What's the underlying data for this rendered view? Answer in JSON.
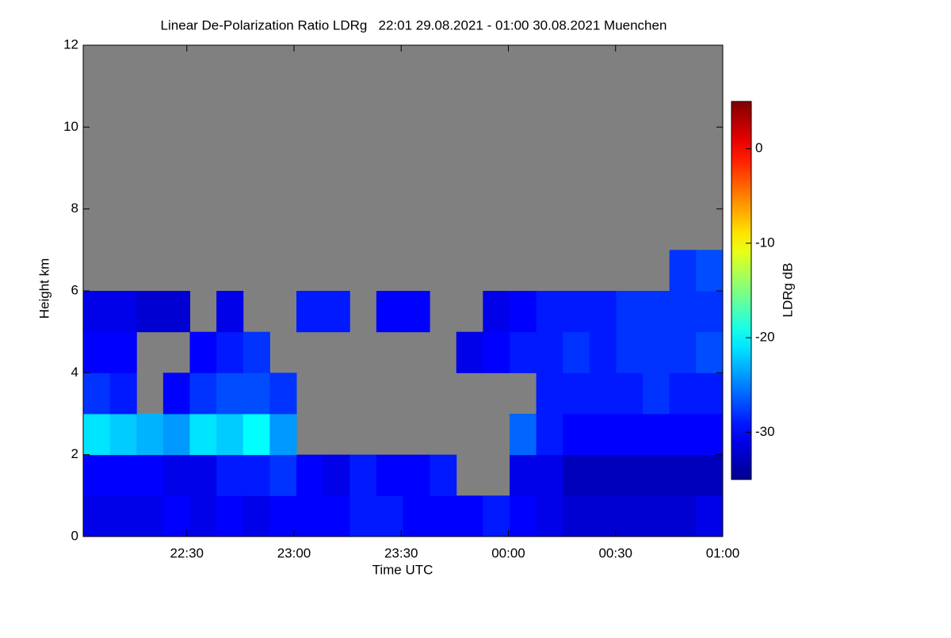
{
  "chart_data": {
    "type": "heatmap",
    "title": "Linear De-Polarization Ratio LDRg   22:01 29.08.2021 - 01:00 30.08.2021 Muenchen",
    "x_label": "Time UTC",
    "y_label": "Height km",
    "xlim": [
      1,
      180
    ],
    "xticks": [
      {
        "value": 30,
        "label": "22:30"
      },
      {
        "value": 60,
        "label": "23:00"
      },
      {
        "value": 90,
        "label": "23:30"
      },
      {
        "value": 120,
        "label": "00:00"
      },
      {
        "value": 150,
        "label": "00:30"
      },
      {
        "value": 180,
        "label": "01:00"
      }
    ],
    "ylim": [
      0,
      12
    ],
    "yticks": [
      0,
      2,
      4,
      6,
      8,
      10,
      12
    ],
    "colorbar": {
      "label": "LDRg dB",
      "zlim": [
        -35,
        5
      ],
      "ticks": [
        0,
        -10,
        -20,
        -30
      ]
    },
    "z": [
      [
        -31,
        -31,
        -31,
        -30,
        -31,
        -30,
        -31,
        -30,
        -30,
        -30,
        -29,
        -29,
        -30,
        -30,
        -30,
        -29,
        -30,
        -31,
        -32,
        -32,
        -32,
        -32,
        -32,
        -31
      ],
      [
        -30,
        -30,
        -30,
        -31,
        -31,
        -29,
        -29,
        -28,
        -30,
        -31,
        -29,
        -30,
        -30,
        -29,
        null,
        null,
        -31,
        -31,
        -33,
        -33,
        -33,
        -33,
        -33,
        -33
      ],
      [
        -21,
        -22,
        -23,
        -24,
        -21,
        -22,
        -20,
        -24,
        null,
        null,
        null,
        null,
        null,
        null,
        null,
        null,
        -26,
        -29,
        -30,
        -30,
        -30,
        -30,
        -30,
        -30
      ],
      [
        -28,
        -29,
        null,
        -30,
        -28,
        -27,
        -27,
        -28,
        null,
        null,
        null,
        null,
        null,
        null,
        null,
        null,
        null,
        -29,
        -29,
        -29,
        -29,
        -28,
        -29,
        -29
      ],
      [
        -30,
        -30,
        null,
        null,
        -30,
        -29,
        -28,
        null,
        null,
        null,
        null,
        null,
        null,
        null,
        -31,
        -30,
        -29,
        -29,
        -28,
        -29,
        -28,
        -28,
        -28,
        -27
      ],
      [
        -31,
        -31,
        -32,
        -32,
        null,
        -31,
        null,
        null,
        -29,
        -29,
        null,
        -30,
        -30,
        null,
        null,
        -31,
        -30,
        -29,
        -29,
        -29,
        -28,
        -28,
        -28,
        -28
      ],
      [
        null,
        null,
        null,
        null,
        null,
        null,
        null,
        null,
        null,
        null,
        null,
        null,
        null,
        null,
        null,
        null,
        null,
        null,
        null,
        null,
        null,
        null,
        -28,
        -27
      ],
      [
        null,
        null,
        null,
        null,
        null,
        null,
        null,
        null,
        null,
        null,
        null,
        null,
        null,
        null,
        null,
        null,
        null,
        null,
        null,
        null,
        null,
        null,
        null,
        null
      ],
      [
        null,
        null,
        null,
        null,
        null,
        null,
        null,
        null,
        null,
        null,
        null,
        null,
        null,
        null,
        null,
        null,
        null,
        null,
        null,
        null,
        null,
        null,
        null,
        null
      ],
      [
        null,
        null,
        null,
        null,
        null,
        null,
        null,
        null,
        null,
        null,
        null,
        null,
        null,
        null,
        null,
        null,
        null,
        null,
        null,
        null,
        null,
        null,
        null,
        null
      ],
      [
        null,
        null,
        null,
        null,
        null,
        null,
        null,
        null,
        null,
        null,
        null,
        null,
        null,
        null,
        null,
        null,
        null,
        null,
        null,
        null,
        null,
        null,
        null,
        null
      ],
      [
        null,
        null,
        null,
        null,
        null,
        null,
        null,
        null,
        null,
        null,
        null,
        null,
        null,
        null,
        null,
        null,
        null,
        null,
        null,
        null,
        null,
        null,
        null,
        null
      ]
    ]
  }
}
